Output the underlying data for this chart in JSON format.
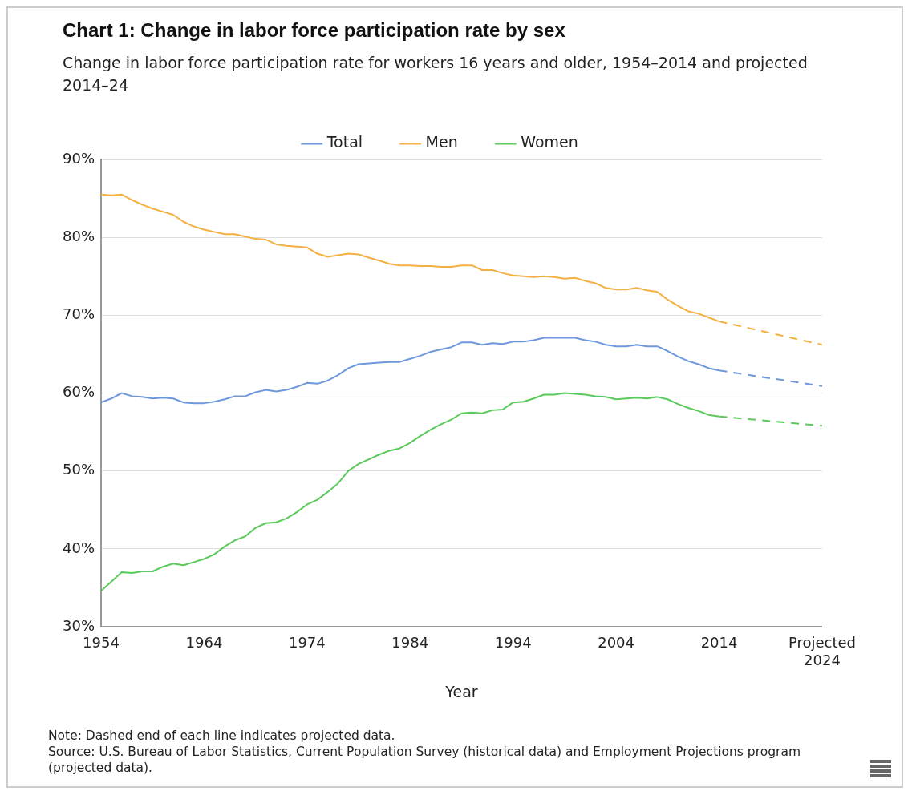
{
  "chart_data": {
    "type": "line",
    "title": "Chart 1: Change in labor force participation rate by sex",
    "subtitle": "Change in labor force participation rate for workers 16 years and older, 1954–2014 and projected 2014–24",
    "xlabel": "Year",
    "x": [
      1954,
      1955,
      1956,
      1957,
      1958,
      1959,
      1960,
      1961,
      1962,
      1963,
      1964,
      1965,
      1966,
      1967,
      1968,
      1969,
      1970,
      1971,
      1972,
      1973,
      1974,
      1975,
      1976,
      1977,
      1978,
      1979,
      1980,
      1981,
      1982,
      1983,
      1984,
      1985,
      1986,
      1987,
      1988,
      1989,
      1990,
      1991,
      1992,
      1993,
      1994,
      1995,
      1996,
      1997,
      1998,
      1999,
      2000,
      2001,
      2002,
      2003,
      2004,
      2005,
      2006,
      2007,
      2008,
      2009,
      2010,
      2011,
      2012,
      2013,
      2014,
      2024
    ],
    "series": [
      {
        "name": "Total",
        "color": "#6f98dc",
        "values": [
          58.8,
          59.3,
          60.0,
          59.6,
          59.5,
          59.3,
          59.4,
          59.3,
          58.8,
          58.7,
          58.7,
          58.9,
          59.2,
          59.6,
          59.6,
          60.1,
          60.4,
          60.2,
          60.4,
          60.8,
          61.3,
          61.2,
          61.6,
          62.3,
          63.2,
          63.7,
          63.8,
          63.9,
          64.0,
          64.0,
          64.4,
          64.8,
          65.3,
          65.6,
          65.9,
          66.5,
          66.5,
          66.2,
          66.4,
          66.3,
          66.6,
          66.6,
          66.8,
          67.1,
          67.1,
          67.1,
          67.1,
          66.8,
          66.6,
          66.2,
          66.0,
          66.0,
          66.2,
          66.0,
          66.0,
          65.4,
          64.7,
          64.1,
          63.7,
          63.2,
          62.9,
          null
        ]
      },
      {
        "name": "Men",
        "color": "#f5b043",
        "values": [
          85.5,
          85.4,
          85.5,
          84.8,
          84.2,
          83.7,
          83.3,
          82.9,
          82.0,
          81.4,
          81.0,
          80.7,
          80.4,
          80.4,
          80.1,
          79.8,
          79.7,
          79.1,
          78.9,
          78.8,
          78.7,
          77.9,
          77.5,
          77.7,
          77.9,
          77.8,
          77.4,
          77.0,
          76.6,
          76.4,
          76.4,
          76.3,
          76.3,
          76.2,
          76.2,
          76.4,
          76.4,
          75.8,
          75.8,
          75.4,
          75.1,
          75.0,
          74.9,
          75.0,
          74.9,
          74.7,
          74.8,
          74.4,
          74.1,
          73.5,
          73.3,
          73.3,
          73.5,
          73.2,
          73.0,
          72.0,
          71.2,
          70.5,
          70.2,
          69.7,
          69.2,
          null
        ]
      },
      {
        "name": "Women",
        "color": "#5cc95c",
        "values": [
          34.6,
          35.8,
          37.0,
          36.9,
          37.1,
          37.1,
          37.7,
          38.1,
          37.9,
          38.3,
          38.7,
          39.3,
          40.3,
          41.1,
          41.6,
          42.7,
          43.3,
          43.4,
          43.9,
          44.7,
          45.7,
          46.3,
          47.3,
          48.4,
          50.0,
          50.9,
          51.5,
          52.1,
          52.6,
          52.9,
          53.6,
          54.5,
          55.3,
          56.0,
          56.6,
          57.4,
          57.5,
          57.4,
          57.8,
          57.9,
          58.8,
          58.9,
          59.3,
          59.8,
          59.8,
          60.0,
          59.9,
          59.8,
          59.6,
          59.5,
          59.2,
          59.3,
          59.4,
          59.3,
          59.5,
          59.2,
          58.6,
          58.1,
          57.7,
          57.2,
          57.0,
          null
        ]
      },
      {
        "color": "#6f98dc",
        "line_style": "dashed",
        "values": [
          null,
          null,
          null,
          null,
          null,
          null,
          null,
          null,
          null,
          null,
          null,
          null,
          null,
          null,
          null,
          null,
          null,
          null,
          null,
          null,
          null,
          null,
          null,
          null,
          null,
          null,
          null,
          null,
          null,
          null,
          null,
          null,
          null,
          null,
          null,
          null,
          null,
          null,
          null,
          null,
          null,
          null,
          null,
          null,
          null,
          null,
          null,
          null,
          null,
          null,
          null,
          null,
          null,
          null,
          null,
          null,
          null,
          null,
          null,
          null,
          62.9,
          60.9
        ]
      },
      {
        "color": "#f5b043",
        "line_style": "dashed",
        "values": [
          null,
          null,
          null,
          null,
          null,
          null,
          null,
          null,
          null,
          null,
          null,
          null,
          null,
          null,
          null,
          null,
          null,
          null,
          null,
          null,
          null,
          null,
          null,
          null,
          null,
          null,
          null,
          null,
          null,
          null,
          null,
          null,
          null,
          null,
          null,
          null,
          null,
          null,
          null,
          null,
          null,
          null,
          null,
          null,
          null,
          null,
          null,
          null,
          null,
          null,
          null,
          null,
          null,
          null,
          null,
          null,
          null,
          null,
          null,
          null,
          69.2,
          66.2
        ]
      },
      {
        "color": "#5cc95c",
        "line_style": "dashed",
        "values": [
          null,
          null,
          null,
          null,
          null,
          null,
          null,
          null,
          null,
          null,
          null,
          null,
          null,
          null,
          null,
          null,
          null,
          null,
          null,
          null,
          null,
          null,
          null,
          null,
          null,
          null,
          null,
          null,
          null,
          null,
          null,
          null,
          null,
          null,
          null,
          null,
          null,
          null,
          null,
          null,
          null,
          null,
          null,
          null,
          null,
          null,
          null,
          null,
          null,
          null,
          null,
          null,
          null,
          null,
          null,
          null,
          null,
          null,
          null,
          null,
          57.0,
          55.8
        ]
      }
    ],
    "xlim": [
      1954,
      2024
    ],
    "xticks": [
      1954,
      1964,
      1974,
      1984,
      1994,
      2004,
      2014,
      {
        "value": 2024,
        "label": "Projected 2024"
      }
    ],
    "ylim": [
      30,
      90
    ],
    "yticks": [
      {
        "value": 30,
        "label": "30%"
      },
      {
        "value": 40,
        "label": "40%"
      },
      {
        "value": 50,
        "label": "50%"
      },
      {
        "value": 60,
        "label": "60%"
      },
      {
        "value": 70,
        "label": "70%"
      },
      {
        "value": 80,
        "label": "80%"
      },
      {
        "value": 90,
        "label": "90%"
      }
    ],
    "grid": "y",
    "legend": "top",
    "marker": "none",
    "line_style": "solid",
    "annotations": [
      "Note: Dashed end of each line indicates projected data.",
      "Source: U.S. Bureau of Labor Statistics, Current Population Survey (historical data) and Employment Projections program (projected data)."
    ]
  }
}
